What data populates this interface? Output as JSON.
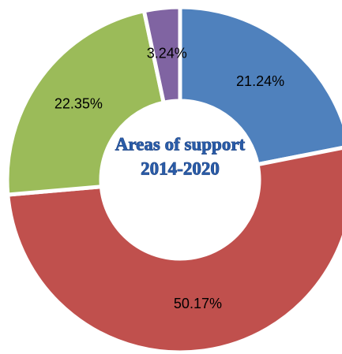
{
  "chart_data": {
    "type": "donut",
    "title": [
      "Areas of support",
      "2014-2020"
    ],
    "categories": [
      null,
      null,
      null,
      null
    ],
    "values": [
      21.24,
      50.17,
      22.35,
      3.24
    ],
    "value_labels": [
      "21.24%",
      "50.17%",
      "22.35%",
      "3.24%"
    ],
    "colors": [
      "#4f81bd",
      "#c0504d",
      "#9bbb59",
      "#8064a2"
    ]
  }
}
